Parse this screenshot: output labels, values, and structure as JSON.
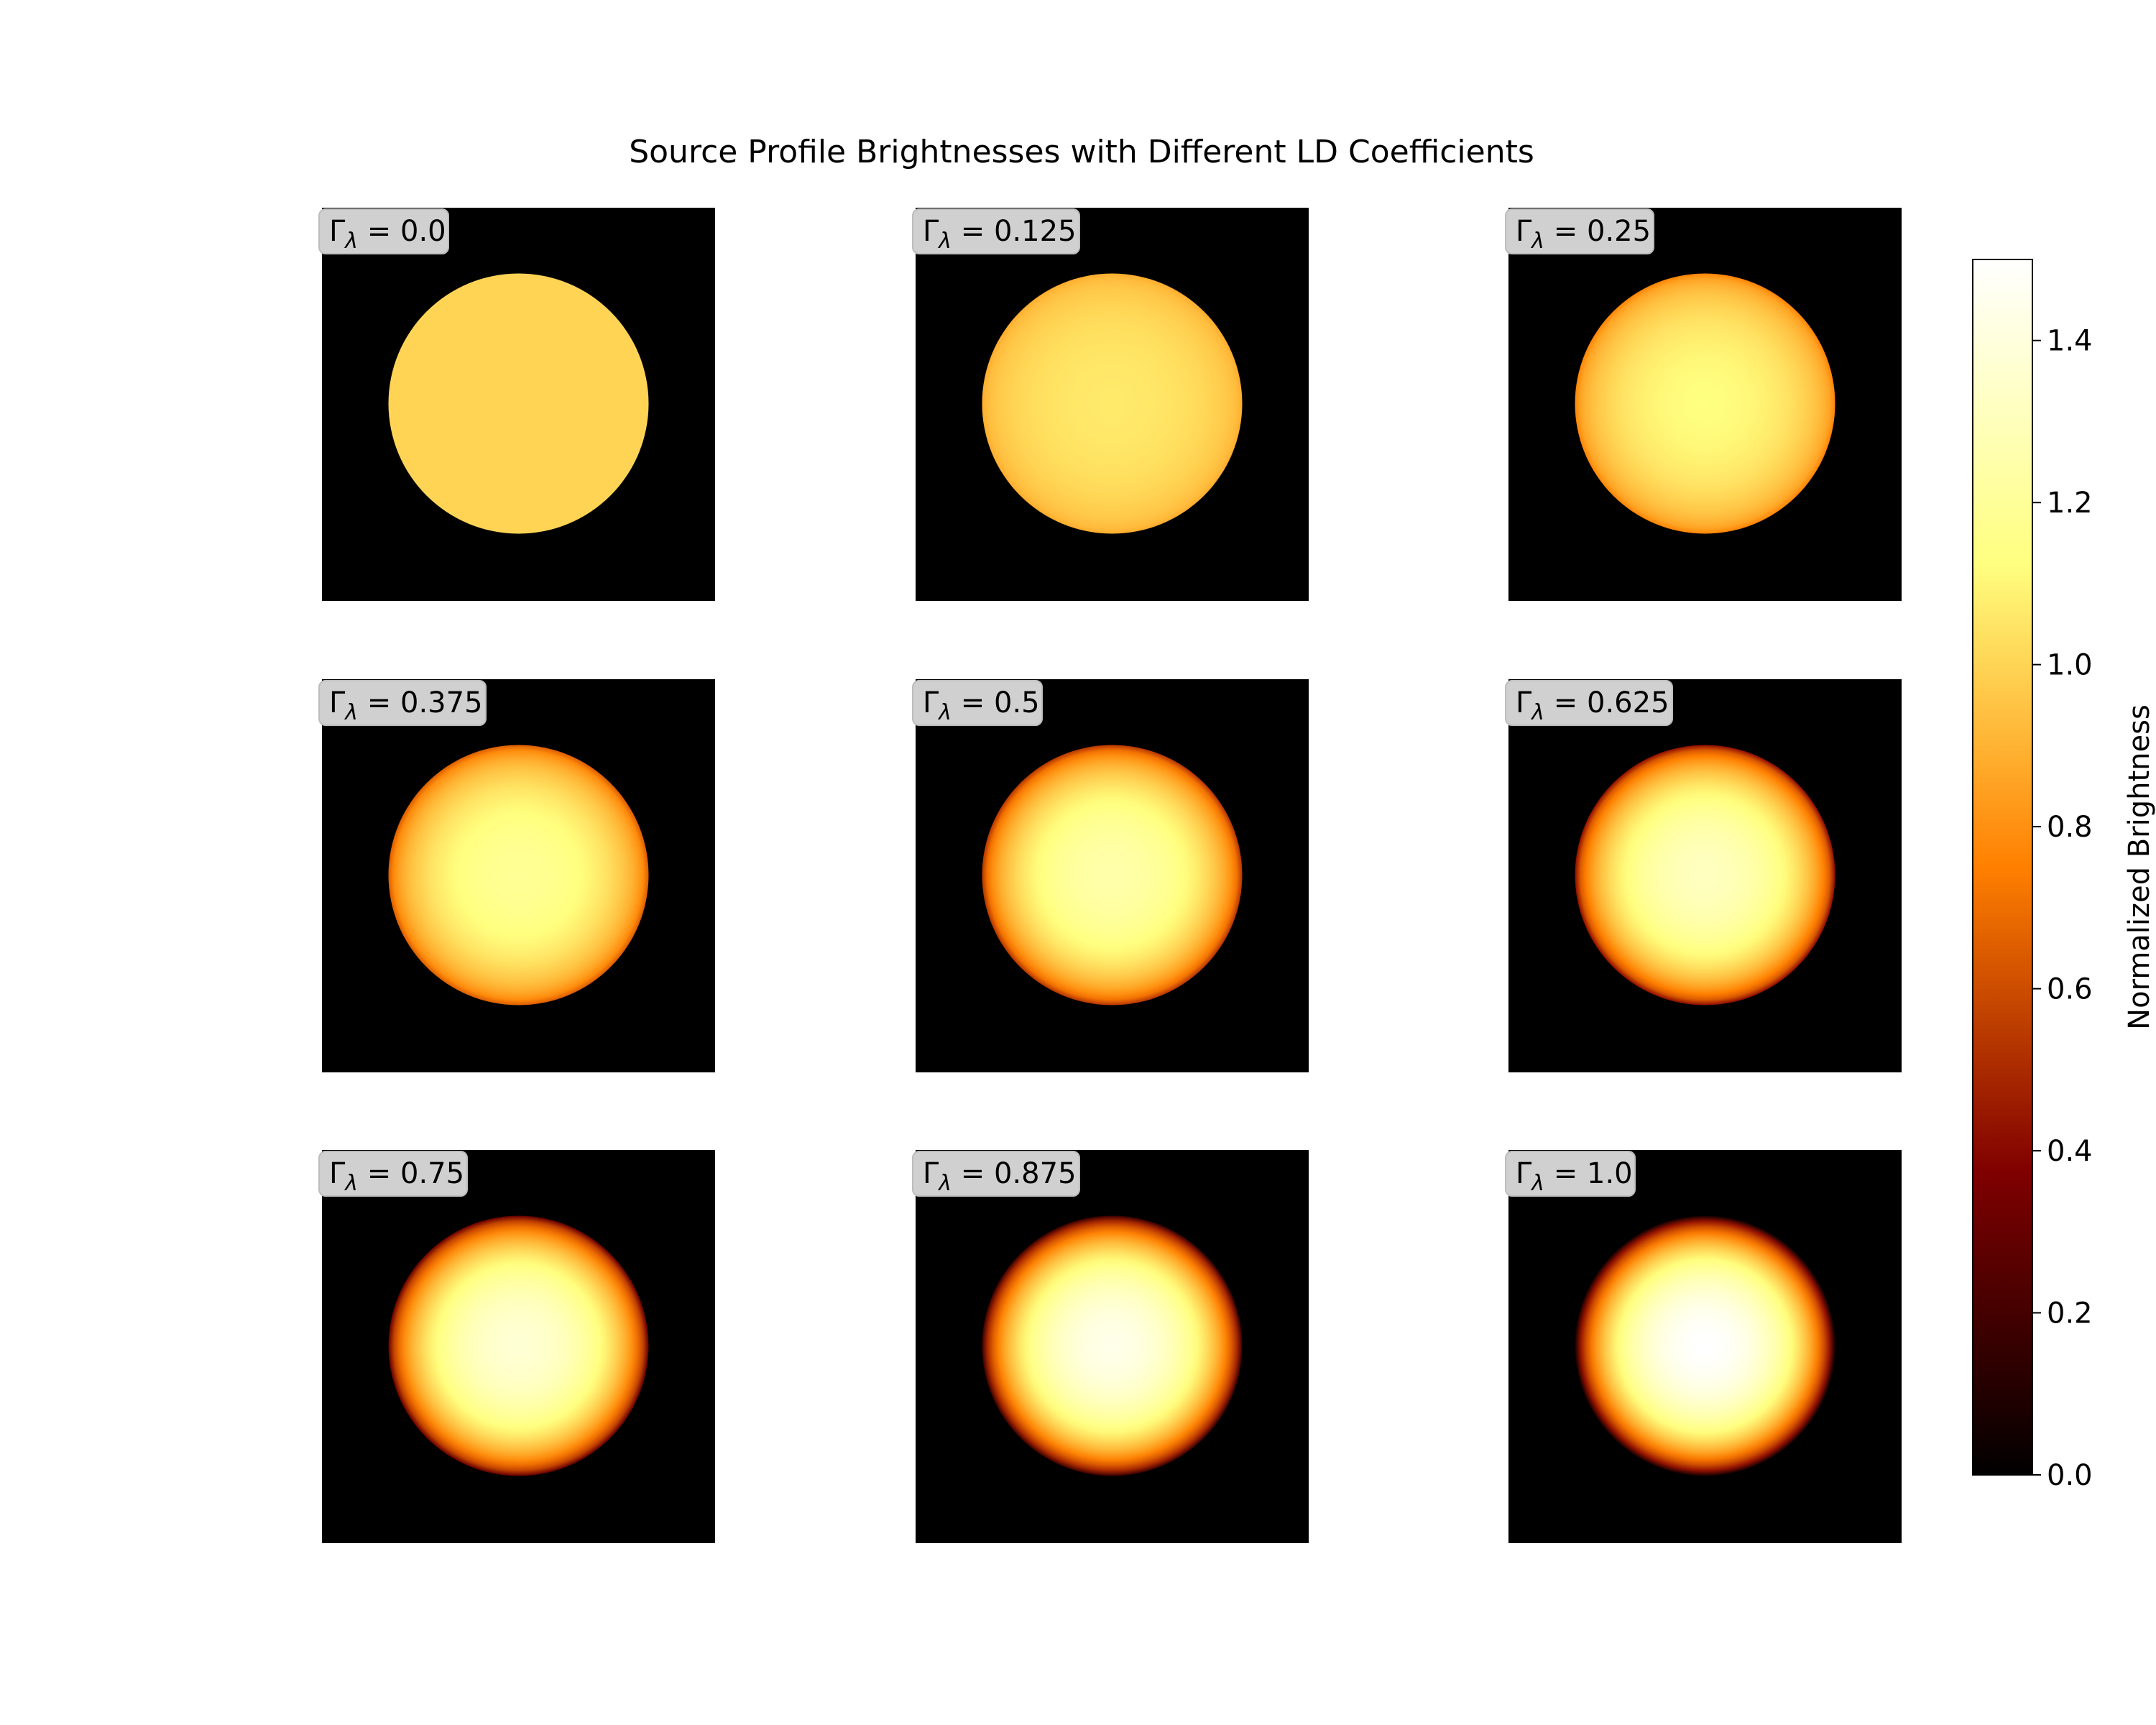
{
  "chart_data": {
    "type": "heatmap",
    "title": "Source Profile Brightnesses with Different LD Coefficients",
    "label_symbol": "Γ",
    "label_subscript": "λ",
    "panels": [
      {
        "gamma": 0.0,
        "label": "0.0"
      },
      {
        "gamma": 0.125,
        "label": "0.125"
      },
      {
        "gamma": 0.25,
        "label": "0.25"
      },
      {
        "gamma": 0.375,
        "label": "0.375"
      },
      {
        "gamma": 0.5,
        "label": "0.5"
      },
      {
        "gamma": 0.625,
        "label": "0.625"
      },
      {
        "gamma": 0.75,
        "label": "0.75"
      },
      {
        "gamma": 0.875,
        "label": "0.875"
      },
      {
        "gamma": 1.0,
        "label": "1.0"
      }
    ],
    "brightness_model": "1 - gamma * (1 - 1.5 * sqrt(1 - r^2))",
    "colormap": "afmhot",
    "colorbar": {
      "label": "Normalized Brightness",
      "range": [
        0.0,
        1.5
      ],
      "ticks": [
        "0.0",
        "0.2",
        "0.4",
        "0.6",
        "0.8",
        "1.0",
        "1.2",
        "1.4"
      ]
    },
    "grid": false,
    "background_color": "#000000"
  }
}
